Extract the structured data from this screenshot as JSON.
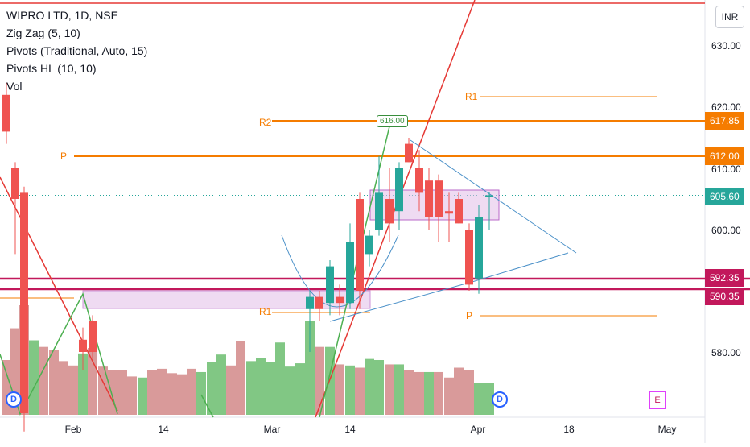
{
  "legend": {
    "symbol": "WIPRO LTD, 1D, NSE",
    "ind1": "Zig Zag (5, 10)",
    "ind2": "Pivots (Traditional, Auto, 15)",
    "ind3": "Pivots HL (10, 10)",
    "ind4": "Vol"
  },
  "currency": "INR",
  "colors": {
    "up": "#26a69a",
    "down": "#ef5350",
    "up_vol": "#81c784",
    "down_vol": "#d99a9a",
    "pivot": "#f57c00",
    "support": "#c2185b",
    "trend_red": "#e53935",
    "trend_blue": "#4a90c8",
    "zigzag": "#4caf50",
    "box": "#e1bee7"
  },
  "price_tags": {
    "r2": "617.85",
    "p": "612.00",
    "last": "605.60",
    "s1": "592.35",
    "s2": "590.35"
  },
  "pivot_labels": {
    "r1_top": "R1",
    "r2": "R2",
    "p_left": "P",
    "r1_low": "R1",
    "p_low": "P"
  },
  "pivot_hl_label": "616.00",
  "badges": {
    "d1": "D",
    "d2": "D",
    "e": "E"
  },
  "chart_data": {
    "type": "candlestick",
    "y_unit": "INR",
    "y_ticks": [
      "630.00",
      "620.00",
      "610.00",
      "600.00",
      "580.00"
    ],
    "x_ticks": [
      "Feb",
      "14",
      "Mar",
      "14",
      "Apr",
      "18",
      "May"
    ],
    "candles": [
      {
        "x": 8,
        "o": 622,
        "h": 624,
        "l": 614,
        "c": 616
      },
      {
        "x": 19,
        "o": 610,
        "h": 611,
        "l": 596,
        "c": 605
      },
      {
        "x": 30,
        "o": 606,
        "h": 607,
        "l": 567,
        "c": 570
      },
      {
        "x": 103,
        "o": 582,
        "h": 584,
        "l": 577,
        "c": 580
      },
      {
        "x": 115,
        "o": 585,
        "h": 586,
        "l": 579,
        "c": 580
      },
      {
        "x": 385,
        "o": 587,
        "h": 590,
        "l": 580,
        "c": 589
      },
      {
        "x": 397,
        "o": 589,
        "h": 590,
        "l": 585,
        "c": 587
      },
      {
        "x": 410,
        "o": 588,
        "h": 595,
        "l": 586,
        "c": 594
      },
      {
        "x": 422,
        "o": 589,
        "h": 591,
        "l": 586,
        "c": 588
      },
      {
        "x": 435,
        "o": 588,
        "h": 601,
        "l": 587,
        "c": 598
      },
      {
        "x": 447,
        "o": 605,
        "h": 606,
        "l": 587,
        "c": 590
      },
      {
        "x": 459,
        "o": 596,
        "h": 600,
        "l": 594,
        "c": 599
      },
      {
        "x": 471,
        "o": 600,
        "h": 612,
        "l": 599,
        "c": 606
      },
      {
        "x": 484,
        "o": 605,
        "h": 610,
        "l": 598,
        "c": 601
      },
      {
        "x": 496,
        "o": 603,
        "h": 611,
        "l": 600,
        "c": 610
      },
      {
        "x": 508,
        "o": 614,
        "h": 615,
        "l": 611,
        "c": 611
      },
      {
        "x": 521,
        "o": 610,
        "h": 613,
        "l": 603,
        "c": 606
      },
      {
        "x": 533,
        "o": 608,
        "h": 610,
        "l": 600,
        "c": 602
      },
      {
        "x": 545,
        "o": 608,
        "h": 609,
        "l": 598,
        "c": 602
      },
      {
        "x": 558,
        "o": 603,
        "h": 606,
        "l": 598,
        "c": 602.6
      },
      {
        "x": 570,
        "o": 605,
        "h": 606,
        "l": 601,
        "c": 601
      },
      {
        "x": 583,
        "o": 600,
        "h": 601,
        "l": 590,
        "c": 591
      },
      {
        "x": 595,
        "o": 592,
        "h": 604,
        "l": 589.5,
        "c": 602
      },
      {
        "x": 608,
        "o": 605.3,
        "h": 606.1,
        "l": 600,
        "c": 605.6
      }
    ],
    "volume": [
      {
        "x": 8,
        "v": 0.5,
        "dir": "down"
      },
      {
        "x": 19,
        "v": 0.79,
        "dir": "down"
      },
      {
        "x": 30,
        "v": 1.0,
        "dir": "down"
      },
      {
        "x": 42,
        "v": 0.68,
        "dir": "up"
      },
      {
        "x": 54,
        "v": 0.62,
        "dir": "down"
      },
      {
        "x": 67,
        "v": 0.59,
        "dir": "down"
      },
      {
        "x": 79,
        "v": 0.49,
        "dir": "down"
      },
      {
        "x": 91,
        "v": 0.45,
        "dir": "down"
      },
      {
        "x": 103,
        "v": 0.56,
        "dir": "up"
      },
      {
        "x": 115,
        "v": 0.61,
        "dir": "down"
      },
      {
        "x": 128,
        "v": 0.44,
        "dir": "down"
      },
      {
        "x": 140,
        "v": 0.41,
        "dir": "down"
      },
      {
        "x": 152,
        "v": 0.41,
        "dir": "down"
      },
      {
        "x": 164,
        "v": 0.35,
        "dir": "down"
      },
      {
        "x": 177,
        "v": 0.34,
        "dir": "up"
      },
      {
        "x": 189,
        "v": 0.41,
        "dir": "down"
      },
      {
        "x": 201,
        "v": 0.42,
        "dir": "down"
      },
      {
        "x": 214,
        "v": 0.38,
        "dir": "down"
      },
      {
        "x": 226,
        "v": 0.37,
        "dir": "down"
      },
      {
        "x": 238,
        "v": 0.42,
        "dir": "down"
      },
      {
        "x": 250,
        "v": 0.39,
        "dir": "up"
      },
      {
        "x": 263,
        "v": 0.48,
        "dir": "up"
      },
      {
        "x": 275,
        "v": 0.55,
        "dir": "up"
      },
      {
        "x": 287,
        "v": 0.45,
        "dir": "down"
      },
      {
        "x": 299,
        "v": 0.67,
        "dir": "down"
      },
      {
        "x": 312,
        "v": 0.49,
        "dir": "up"
      },
      {
        "x": 324,
        "v": 0.52,
        "dir": "up"
      },
      {
        "x": 336,
        "v": 0.48,
        "dir": "up"
      },
      {
        "x": 348,
        "v": 0.66,
        "dir": "up"
      },
      {
        "x": 360,
        "v": 0.44,
        "dir": "up"
      },
      {
        "x": 373,
        "v": 0.47,
        "dir": "up"
      },
      {
        "x": 385,
        "v": 0.86,
        "dir": "up"
      },
      {
        "x": 397,
        "v": 0.62,
        "dir": "down"
      },
      {
        "x": 410,
        "v": 0.62,
        "dir": "up"
      },
      {
        "x": 422,
        "v": 0.46,
        "dir": "down"
      },
      {
        "x": 435,
        "v": 0.45,
        "dir": "up"
      },
      {
        "x": 447,
        "v": 0.43,
        "dir": "down"
      },
      {
        "x": 459,
        "v": 0.51,
        "dir": "up"
      },
      {
        "x": 471,
        "v": 0.5,
        "dir": "up"
      },
      {
        "x": 484,
        "v": 0.46,
        "dir": "down"
      },
      {
        "x": 496,
        "v": 0.46,
        "dir": "up"
      },
      {
        "x": 508,
        "v": 0.41,
        "dir": "down"
      },
      {
        "x": 521,
        "v": 0.39,
        "dir": "down"
      },
      {
        "x": 533,
        "v": 0.39,
        "dir": "up"
      },
      {
        "x": 545,
        "v": 0.39,
        "dir": "down"
      },
      {
        "x": 558,
        "v": 0.34,
        "dir": "down"
      },
      {
        "x": 570,
        "v": 0.43,
        "dir": "down"
      },
      {
        "x": 583,
        "v": 0.41,
        "dir": "down"
      },
      {
        "x": 595,
        "v": 0.29,
        "dir": "up"
      },
      {
        "x": 608,
        "v": 0.29,
        "dir": "up"
      }
    ]
  }
}
